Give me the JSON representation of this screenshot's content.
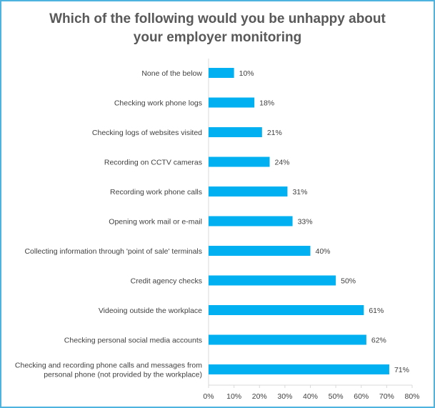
{
  "chart_data": {
    "type": "bar",
    "orientation": "horizontal",
    "title_lines": [
      "Which of the following would you be unhappy about",
      "your employer monitoring"
    ],
    "categories": [
      [
        "None of the below"
      ],
      [
        "Checking work phone logs"
      ],
      [
        "Checking logs of websites visited"
      ],
      [
        "Recording on CCTV cameras"
      ],
      [
        "Recording work phone calls"
      ],
      [
        "Opening work mail or e-mail"
      ],
      [
        "Collecting information through 'point of sale' terminals"
      ],
      [
        "Credit agency checks"
      ],
      [
        "Videoing outside the workplace"
      ],
      [
        "Checking personal social media accounts"
      ],
      [
        "Checking and recording phone calls and messages from",
        "personal phone (not provided by the workplace)"
      ]
    ],
    "values": [
      10,
      18,
      21,
      24,
      31,
      33,
      40,
      50,
      61,
      62,
      71
    ],
    "value_labels": [
      "10%",
      "18%",
      "21%",
      "24%",
      "31%",
      "33%",
      "40%",
      "50%",
      "61%",
      "62%",
      "71%"
    ],
    "xlim": [
      0,
      80
    ],
    "xticks": [
      0,
      10,
      20,
      30,
      40,
      50,
      60,
      70,
      80
    ],
    "xtick_labels": [
      "0%",
      "10%",
      "20%",
      "30%",
      "40%",
      "50%",
      "60%",
      "70%",
      "80%"
    ],
    "grid": false,
    "legend": "none",
    "bar_color": "#00b0f0",
    "axis_color": "#d9d9d9",
    "border_color": "#4fb3e0"
  }
}
